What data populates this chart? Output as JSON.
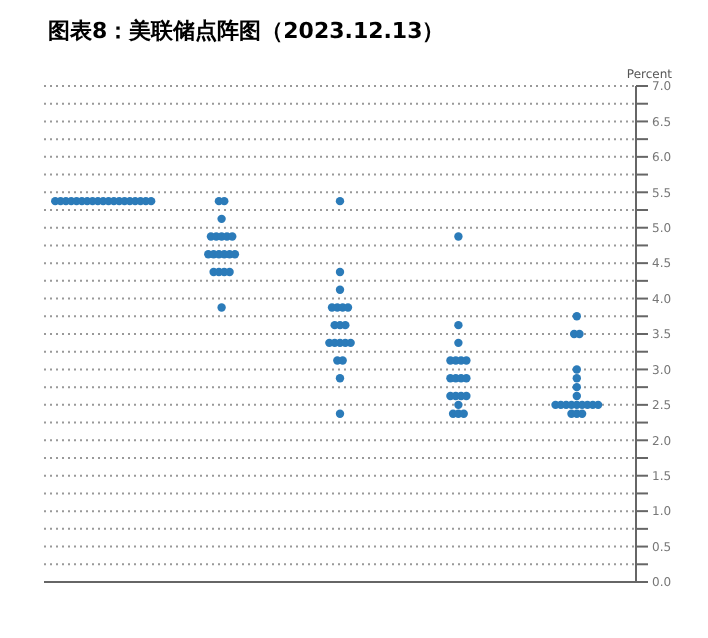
{
  "chart_data": {
    "type": "scatter",
    "title": "图表8：美联储点阵图（2023.12.13）",
    "ylabel": "Percent",
    "categories": [
      null,
      null,
      null,
      null,
      null
    ],
    "ylim": [
      0,
      7
    ],
    "yticks": [
      {
        "value": 0,
        "label": "0.0"
      },
      {
        "value": 0.25,
        "label": null
      },
      {
        "value": 0.5,
        "label": "0.5"
      },
      {
        "value": 0.75,
        "label": null
      },
      {
        "value": 1,
        "label": "1.0"
      },
      {
        "value": 1.25,
        "label": null
      },
      {
        "value": 1.5,
        "label": "1.5"
      },
      {
        "value": 1.75,
        "label": null
      },
      {
        "value": 2,
        "label": "2.0"
      },
      {
        "value": 2.25,
        "label": null
      },
      {
        "value": 2.5,
        "label": "2.5"
      },
      {
        "value": 2.75,
        "label": null
      },
      {
        "value": 3,
        "label": "3.0"
      },
      {
        "value": 3.25,
        "label": null
      },
      {
        "value": 3.5,
        "label": "3.5"
      },
      {
        "value": 3.75,
        "label": null
      },
      {
        "value": 4,
        "label": "4.0"
      },
      {
        "value": 4.25,
        "label": null
      },
      {
        "value": 4.5,
        "label": "4.5"
      },
      {
        "value": 4.75,
        "label": null
      },
      {
        "value": 5,
        "label": "5.0"
      },
      {
        "value": 5.25,
        "label": null
      },
      {
        "value": 5.5,
        "label": "5.5"
      },
      {
        "value": 5.75,
        "label": null
      },
      {
        "value": 6,
        "label": "6.0"
      },
      {
        "value": 6.25,
        "label": null
      },
      {
        "value": 6.5,
        "label": "6.5"
      },
      {
        "value": 6.75,
        "label": null
      },
      {
        "value": 7,
        "label": "7.0"
      }
    ],
    "grid": "y",
    "marker": "circle",
    "legend": false,
    "tick_labels": "y",
    "series": [
      {
        "color": "#2b7bb9",
        "values": [
          5.375,
          5.375,
          5.375,
          4.875,
          3.75
        ]
      },
      {
        "color": "#2b7bb9",
        "values": [
          5.375,
          5.375,
          4.375,
          3.625,
          3.5
        ]
      },
      {
        "color": "#2b7bb9",
        "values": [
          5.375,
          5.125,
          4.125,
          3.375,
          3.5
        ]
      },
      {
        "color": "#2b7bb9",
        "values": [
          5.375,
          4.875,
          3.875,
          3.125,
          3.0
        ]
      },
      {
        "color": "#2b7bb9",
        "values": [
          5.375,
          4.875,
          3.875,
          3.125,
          2.875
        ]
      },
      {
        "color": "#2b7bb9",
        "values": [
          5.375,
          4.875,
          3.875,
          3.125,
          2.75
        ]
      },
      {
        "color": "#2b7bb9",
        "values": [
          5.375,
          4.875,
          3.875,
          3.125,
          2.625
        ]
      },
      {
        "color": "#2b7bb9",
        "values": [
          5.375,
          4.875,
          3.625,
          2.875,
          2.5
        ]
      },
      {
        "color": "#2b7bb9",
        "values": [
          5.375,
          4.625,
          3.625,
          2.875,
          2.5
        ]
      },
      {
        "color": "#2b7bb9",
        "values": [
          5.375,
          4.625,
          3.625,
          2.875,
          2.5
        ]
      },
      {
        "color": "#2b7bb9",
        "values": [
          5.375,
          4.625,
          3.375,
          2.875,
          2.5
        ]
      },
      {
        "color": "#2b7bb9",
        "values": [
          5.375,
          4.625,
          3.375,
          2.625,
          2.5
        ]
      },
      {
        "color": "#2b7bb9",
        "values": [
          5.375,
          4.625,
          3.375,
          2.625,
          2.5
        ]
      },
      {
        "color": "#2b7bb9",
        "values": [
          5.375,
          4.625,
          3.375,
          2.625,
          2.5
        ]
      },
      {
        "color": "#2b7bb9",
        "values": [
          5.375,
          4.375,
          3.375,
          2.625,
          2.5
        ]
      },
      {
        "color": "#2b7bb9",
        "values": [
          5.375,
          4.375,
          3.125,
          2.5,
          2.5
        ]
      },
      {
        "color": "#2b7bb9",
        "values": [
          5.375,
          4.375,
          3.125,
          2.375,
          2.375
        ]
      },
      {
        "color": "#2b7bb9",
        "values": [
          5.375,
          4.375,
          2.875,
          2.375,
          2.375
        ]
      },
      {
        "color": "#2b7bb9",
        "values": [
          5.375,
          3.875,
          2.375,
          2.375,
          2.375
        ]
      }
    ]
  }
}
